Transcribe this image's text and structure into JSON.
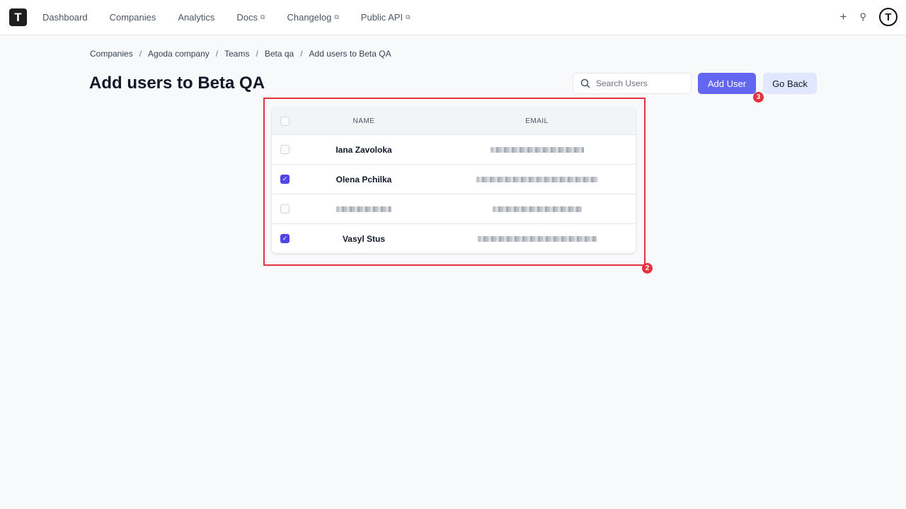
{
  "nav": {
    "logo": "T",
    "items": [
      {
        "label": "Dashboard",
        "external": false
      },
      {
        "label": "Companies",
        "external": false
      },
      {
        "label": "Analytics",
        "external": false
      },
      {
        "label": "Docs",
        "external": true
      },
      {
        "label": "Changelog",
        "external": true
      },
      {
        "label": "Public API",
        "external": true
      }
    ],
    "plus": "+",
    "help": "⚲",
    "avatar": "T"
  },
  "breadcrumb": [
    "Companies",
    "Agoda company",
    "Teams",
    "Beta qa",
    "Add users to Beta QA"
  ],
  "title": "Add users to Beta QA",
  "search": {
    "placeholder": "Search Users",
    "value": ""
  },
  "buttons": {
    "add_user": "Add User",
    "go_back": "Go Back"
  },
  "annotations": {
    "table_badge": "2",
    "add_badge": "3"
  },
  "accent": "#6366f1",
  "table": {
    "columns": [
      "NAME",
      "EMAIL"
    ],
    "rows": [
      {
        "name": "Iana Zavoloka",
        "checked": false
      },
      {
        "name": "Olena Pchilka",
        "checked": true
      },
      {
        "name": "",
        "checked": false
      },
      {
        "name": "Vasyl Stus",
        "checked": true
      }
    ]
  }
}
